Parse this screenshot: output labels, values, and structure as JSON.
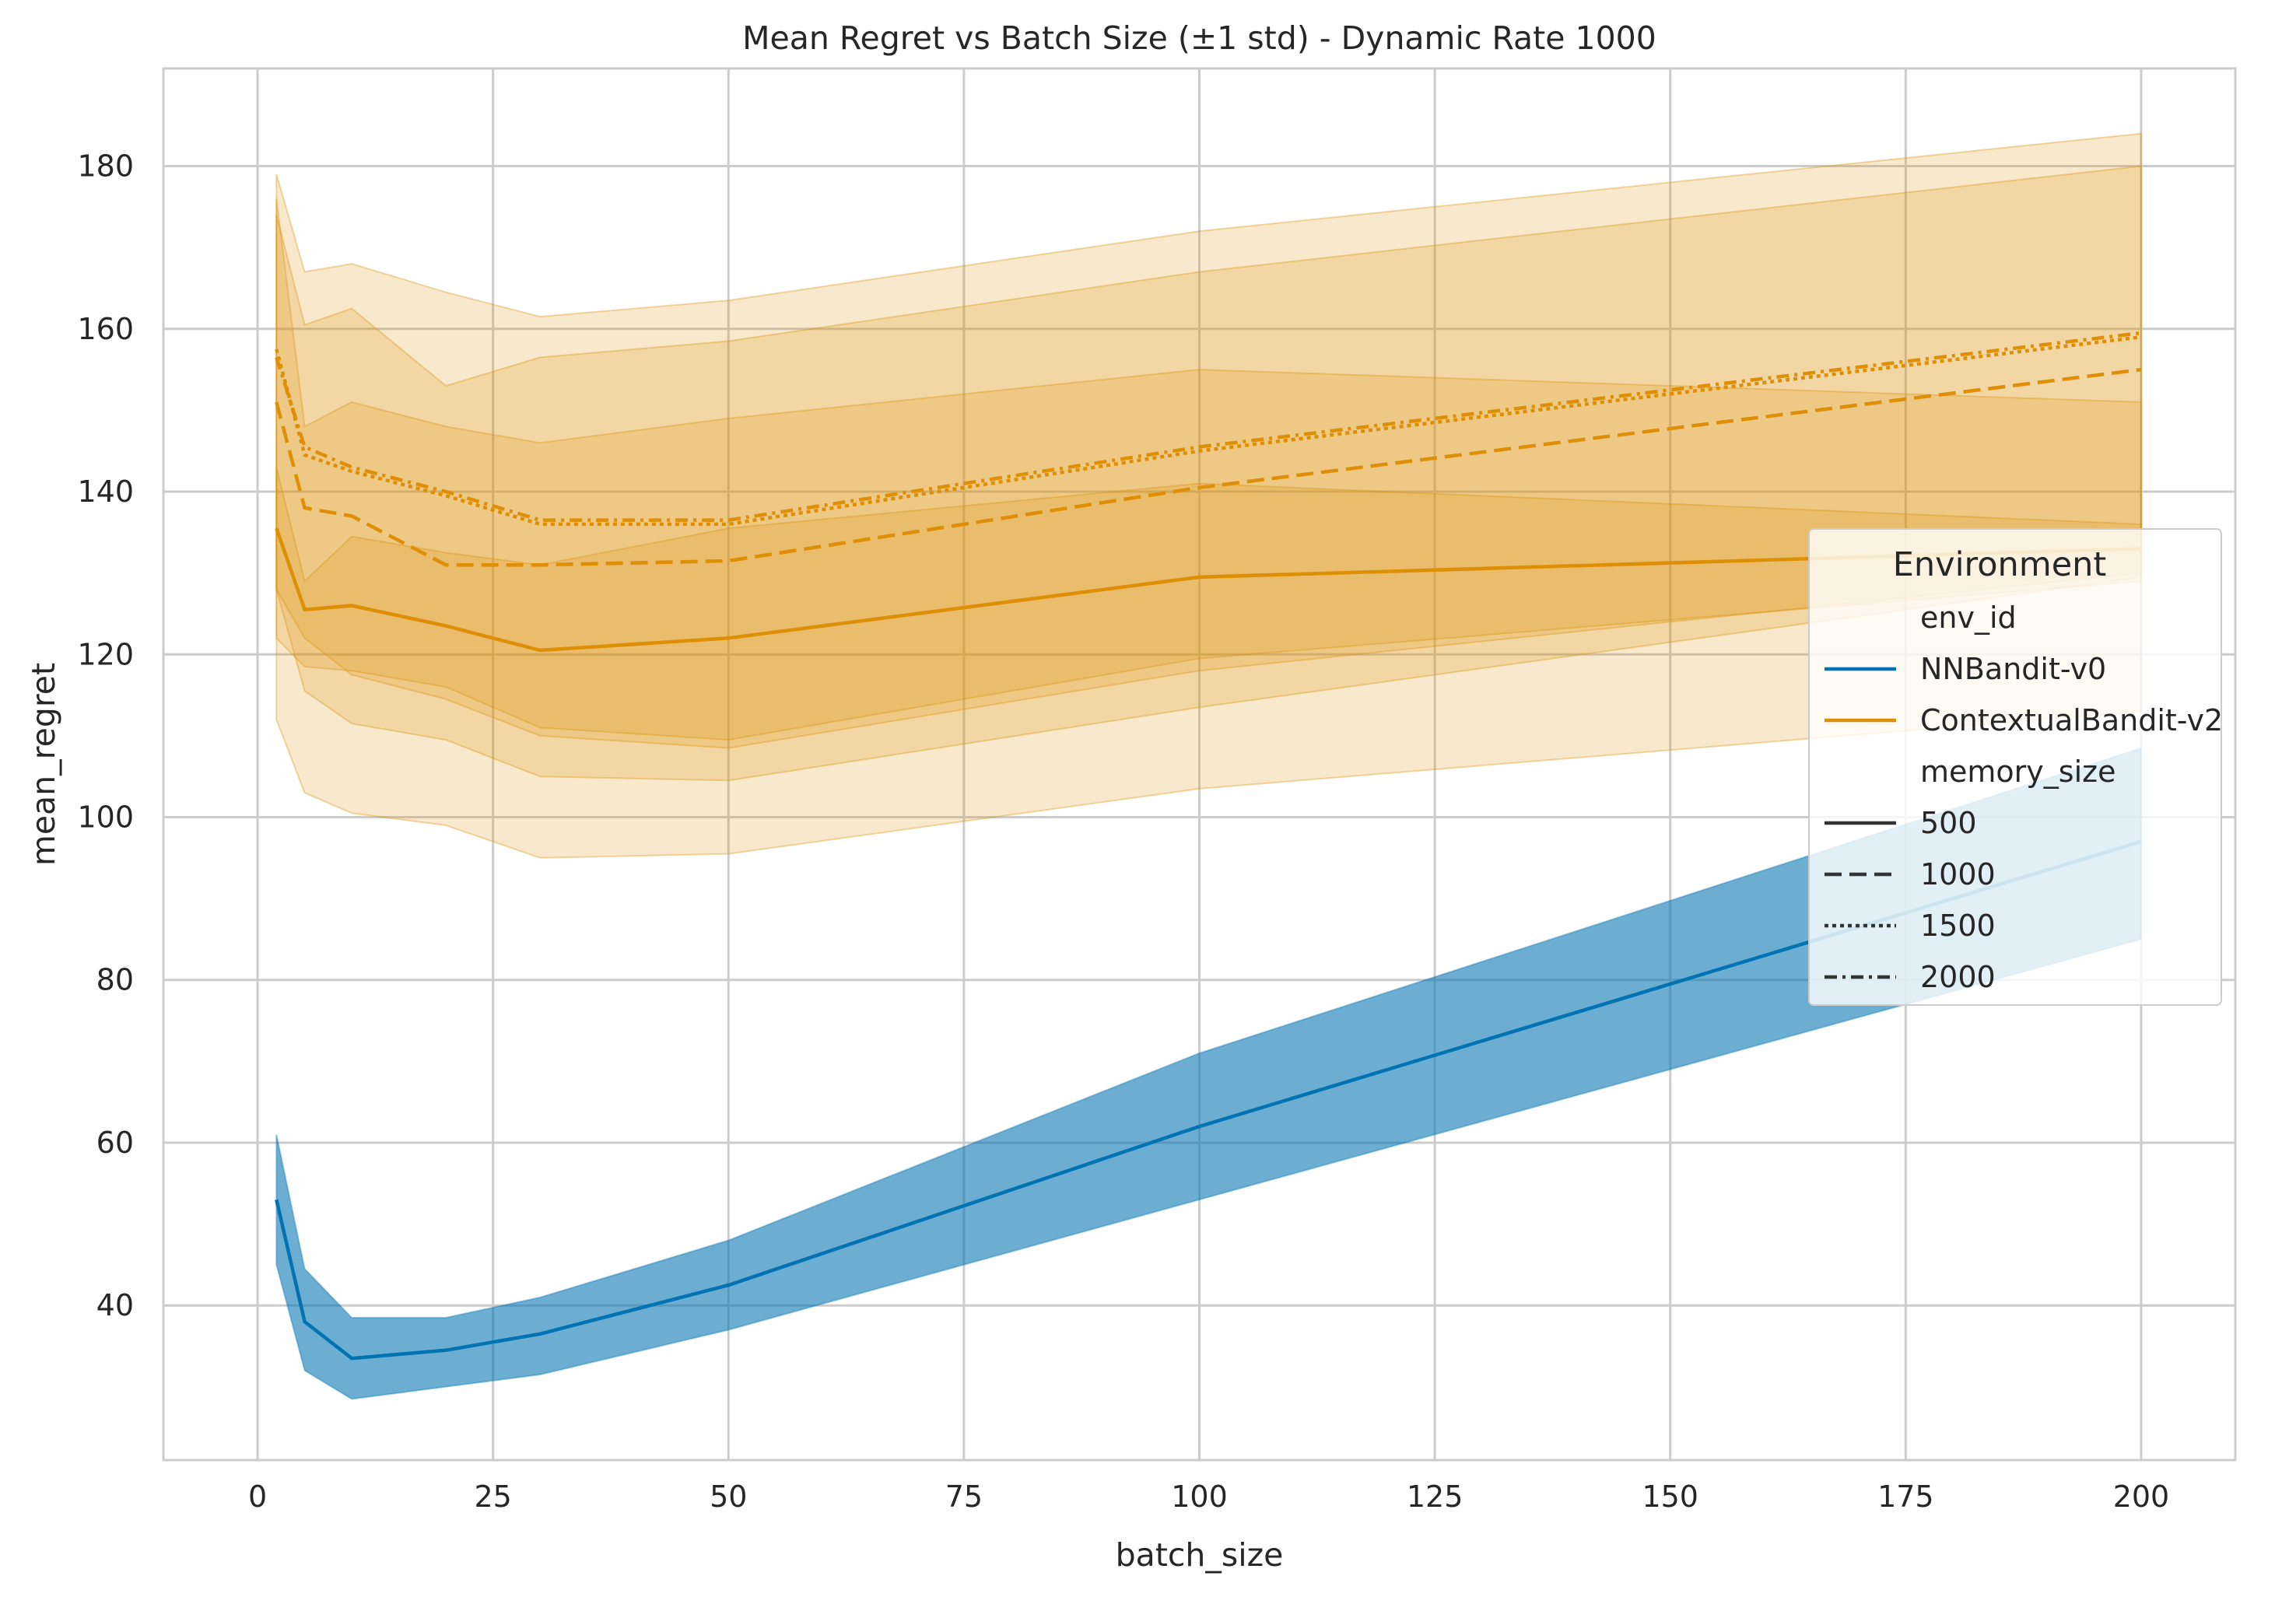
{
  "chart_data": {
    "type": "line",
    "title": "Mean Regret vs Batch Size (±1 std) - Dynamic Rate 1000",
    "xlabel": "batch_size",
    "ylabel": "mean_regret",
    "xlim": [
      -10,
      210
    ],
    "ylim": [
      21,
      192
    ],
    "xticks": [
      0,
      25,
      50,
      75,
      100,
      125,
      150,
      175,
      200
    ],
    "yticks": [
      40,
      60,
      80,
      100,
      120,
      140,
      160,
      180
    ],
    "grid": true,
    "x": [
      2,
      5,
      10,
      20,
      30,
      50,
      100,
      200
    ],
    "series": [
      {
        "env": "ContextualBandit-v2",
        "memory": "500",
        "style": "solid",
        "values": [
          135.5,
          125.5,
          126,
          123.5,
          120.5,
          122,
          129.5,
          133
        ],
        "lower": [
          128,
          122,
          117.5,
          114.5,
          110,
          108.5,
          118,
          130
        ],
        "upper": [
          143,
          129,
          134.5,
          132.5,
          131,
          135.5,
          141,
          136
        ]
      },
      {
        "env": "ContextualBandit-v2",
        "memory": "1000",
        "style": "dashed",
        "values": [
          151,
          138,
          137,
          131,
          131,
          131.5,
          140.5,
          155
        ],
        "lower": [
          128,
          115.5,
          111.5,
          109.5,
          105,
          104.5,
          113.5,
          129.5
        ],
        "upper": [
          174,
          160.5,
          162.5,
          153,
          156.5,
          158.5,
          167,
          180
        ]
      },
      {
        "env": "ContextualBandit-v2",
        "memory": "1500",
        "style": "dotted",
        "values": [
          157.5,
          144.5,
          142.5,
          139.5,
          136,
          136,
          145,
          159
        ],
        "lower": [
          112,
          103,
          100.5,
          99,
          95,
          95.5,
          103.5,
          113
        ],
        "upper": [
          179,
          167,
          168,
          164.5,
          161.5,
          163.5,
          172,
          184
        ]
      },
      {
        "env": "ContextualBandit-v2",
        "memory": "2000",
        "style": "dashdot",
        "values": [
          156.5,
          145.5,
          143,
          140,
          136.5,
          136.5,
          145.5,
          159.5
        ],
        "lower": [
          122,
          118.5,
          118,
          116,
          111,
          109.5,
          119.5,
          129
        ],
        "upper": [
          176,
          148,
          151,
          148,
          146,
          149,
          155,
          151
        ]
      },
      {
        "env": "NNBandit-v0",
        "memory": "500",
        "style": "solid",
        "values": [
          53,
          38,
          33.5,
          34.5,
          36.5,
          42.5,
          62,
          97
        ],
        "lower": [
          45,
          32,
          28.5,
          30,
          31.5,
          37,
          53,
          85
        ],
        "upper": [
          61,
          44.5,
          38.5,
          38.5,
          41,
          48,
          71,
          108.5
        ]
      }
    ],
    "legend": {
      "title": "Environment",
      "placement": "center-right",
      "hue_title": "env_id",
      "hue": [
        {
          "label": "NNBandit-v0",
          "color": "#0173b2"
        },
        {
          "label": "ContextualBandit-v2",
          "color": "#de8f05"
        }
      ],
      "style_title": "memory_size",
      "styles": [
        {
          "label": "500",
          "style": "solid"
        },
        {
          "label": "1000",
          "style": "dashed"
        },
        {
          "label": "1500",
          "style": "dotted"
        },
        {
          "label": "2000",
          "style": "dashdot"
        }
      ]
    },
    "colors": {
      "NNBandit-v0": "#0173b2",
      "ContextualBandit-v2": "#de8f05",
      "grid": "#cccccc",
      "spine": "#cccccc",
      "text": "#262626"
    }
  }
}
